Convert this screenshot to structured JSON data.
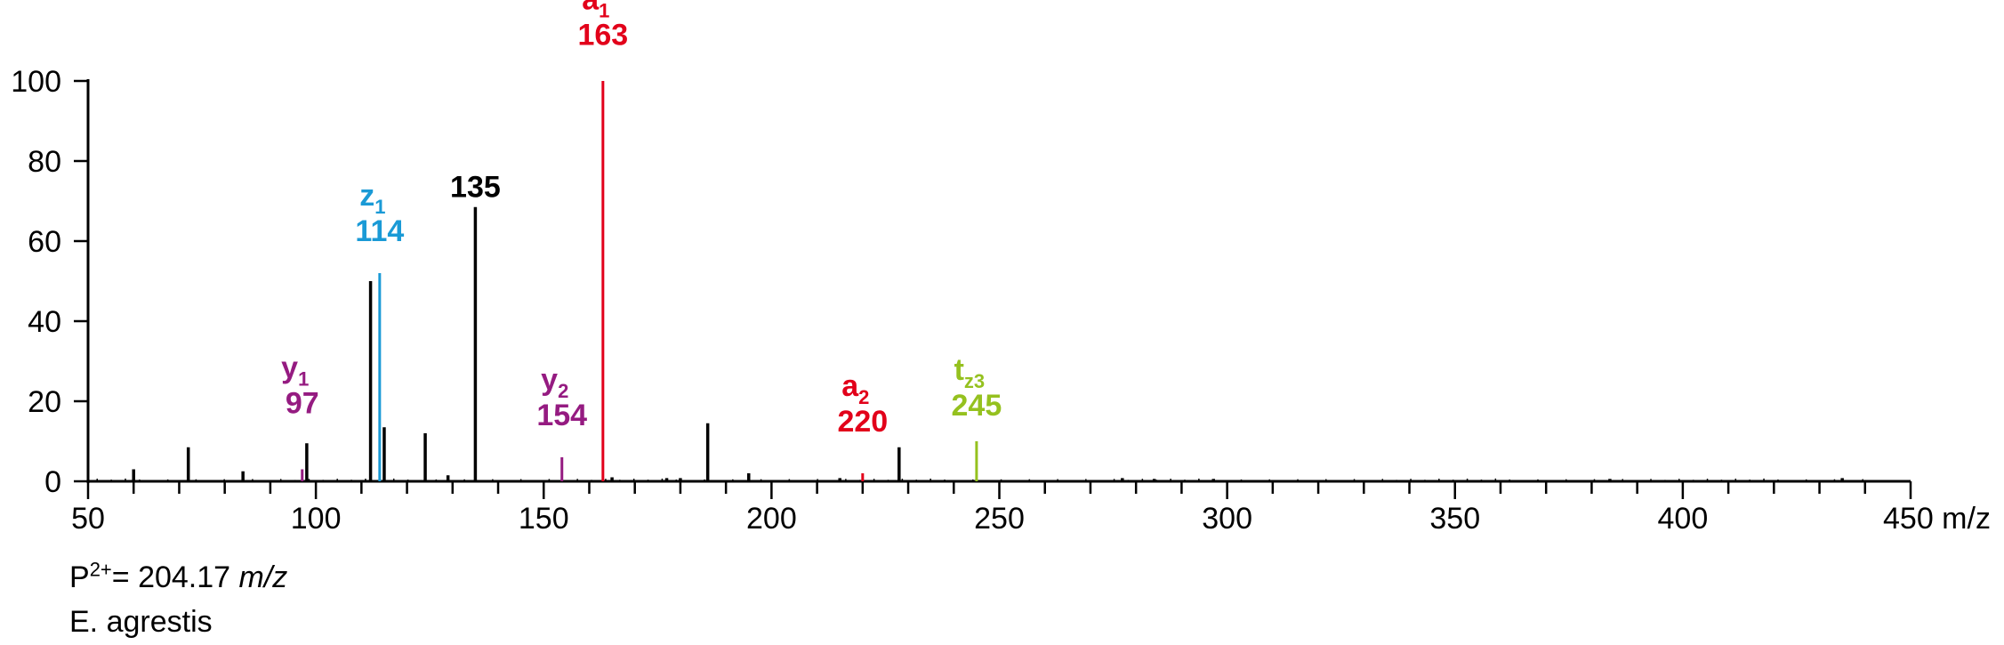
{
  "chart_data": {
    "type": "bar",
    "title": "",
    "xlabel": "m/z",
    "ylabel": "",
    "xlim": [
      50,
      450
    ],
    "ylim": [
      0,
      100
    ],
    "x_ticks": [
      50,
      100,
      150,
      200,
      250,
      300,
      350,
      400,
      450
    ],
    "y_ticks": [
      0,
      20,
      40,
      60,
      80,
      100
    ],
    "x_minor_step": 10,
    "grid": false,
    "colors": {
      "black": "#000000",
      "a": "#e2001a",
      "z": "#1a9ad6",
      "y": "#951b81",
      "t": "#95c11f"
    },
    "peaks": [
      {
        "mz": 60,
        "intensity": 3,
        "color": "black"
      },
      {
        "mz": 72,
        "intensity": 8.5,
        "color": "black"
      },
      {
        "mz": 84,
        "intensity": 2.5,
        "color": "black"
      },
      {
        "mz": 97,
        "intensity": 3,
        "color": "y"
      },
      {
        "mz": 98,
        "intensity": 9.5,
        "color": "black"
      },
      {
        "mz": 112,
        "intensity": 50,
        "color": "black"
      },
      {
        "mz": 114,
        "intensity": 52,
        "color": "z"
      },
      {
        "mz": 115,
        "intensity": 13.5,
        "color": "black"
      },
      {
        "mz": 124,
        "intensity": 12,
        "color": "black"
      },
      {
        "mz": 129,
        "intensity": 1.5,
        "color": "black"
      },
      {
        "mz": 135,
        "intensity": 68.5,
        "color": "black"
      },
      {
        "mz": 154,
        "intensity": 6,
        "color": "y"
      },
      {
        "mz": 163,
        "intensity": 100,
        "color": "a"
      },
      {
        "mz": 165,
        "intensity": 1,
        "color": "black"
      },
      {
        "mz": 177,
        "intensity": 0.8,
        "color": "black"
      },
      {
        "mz": 180,
        "intensity": 0.8,
        "color": "black"
      },
      {
        "mz": 186,
        "intensity": 14.5,
        "color": "black"
      },
      {
        "mz": 195,
        "intensity": 2,
        "color": "black"
      },
      {
        "mz": 215,
        "intensity": 0.8,
        "color": "black"
      },
      {
        "mz": 220,
        "intensity": 2,
        "color": "a"
      },
      {
        "mz": 228,
        "intensity": 8.5,
        "color": "black"
      },
      {
        "mz": 245,
        "intensity": 10,
        "color": "t"
      },
      {
        "mz": 277,
        "intensity": 0.8,
        "color": "black"
      },
      {
        "mz": 284,
        "intensity": 0.6,
        "color": "black"
      },
      {
        "mz": 297,
        "intensity": 0.6,
        "color": "black"
      },
      {
        "mz": 384,
        "intensity": 0.6,
        "color": "black"
      },
      {
        "mz": 435,
        "intensity": 0.8,
        "color": "black"
      }
    ],
    "annotations": [
      {
        "ion": "a",
        "sub": "1",
        "value": "163",
        "mz": 163,
        "y": 109,
        "color": "a"
      },
      {
        "ion": "z",
        "sub": "1",
        "value": "114",
        "mz": 114,
        "y": 60,
        "color": "z"
      },
      {
        "ion": "",
        "sub": "",
        "value": "135",
        "mz": 135,
        "y": 71,
        "color": "black"
      },
      {
        "ion": "y",
        "sub": "1",
        "value": "97",
        "mz": 97,
        "y": 17,
        "color": "y"
      },
      {
        "ion": "y",
        "sub": "2",
        "value": "154",
        "mz": 154,
        "y": 14,
        "color": "y"
      },
      {
        "ion": "a",
        "sub": "2",
        "value": "220",
        "mz": 220,
        "y": 12.5,
        "color": "a"
      },
      {
        "ion": "t",
        "sub": "z3",
        "value": "245",
        "mz": 245,
        "y": 16.5,
        "color": "t"
      }
    ]
  },
  "precursor": {
    "prefix": "P",
    "charge": "2+",
    "value": "= 204.17 ",
    "unit": "m/z"
  },
  "species": "E. agrestis"
}
